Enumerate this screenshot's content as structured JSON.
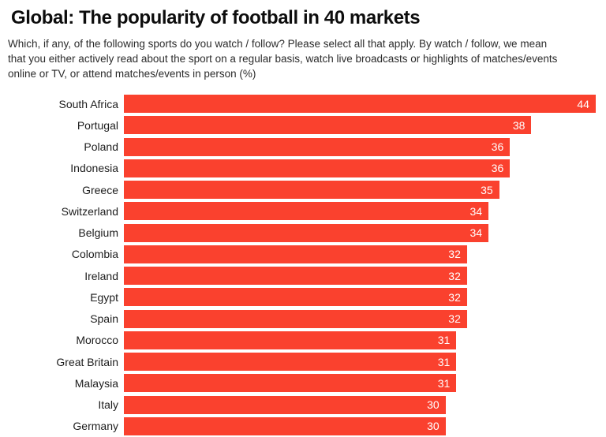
{
  "header": {
    "title": "Global: The popularity of football in 40 markets",
    "subtitle": "Which, if any, of the following sports do you watch / follow? Please select all that apply. By watch / follow, we mean\nthat you either actively read about the sport on a regular basis, watch live broadcasts or highlights of matches/events\nonline or TV, or attend matches/events in person (%)"
  },
  "chart_data": {
    "type": "bar",
    "orientation": "horizontal",
    "title": "Global: The popularity of football in 40 markets",
    "categories": [
      "South Africa",
      "Portugal",
      "Poland",
      "Indonesia",
      "Greece",
      "Switzerland",
      "Belgium",
      "Colombia",
      "Ireland",
      "Egypt",
      "Spain",
      "Morocco",
      "Great Britain",
      "Malaysia",
      "Italy",
      "Germany"
    ],
    "values": [
      44,
      38,
      36,
      36,
      35,
      34,
      34,
      32,
      32,
      32,
      32,
      31,
      31,
      31,
      30,
      30
    ],
    "unit": "%",
    "xlabel": "",
    "ylabel": "",
    "xlim": [
      0,
      45
    ],
    "grid": false,
    "legend": false,
    "value_labels": "inside-end",
    "bar_color": "#FA412E",
    "value_label_color": "#FFFFFF",
    "category_label_color": "#1D1D1D",
    "note": "last row (Germany) partially cut off by viewport"
  }
}
